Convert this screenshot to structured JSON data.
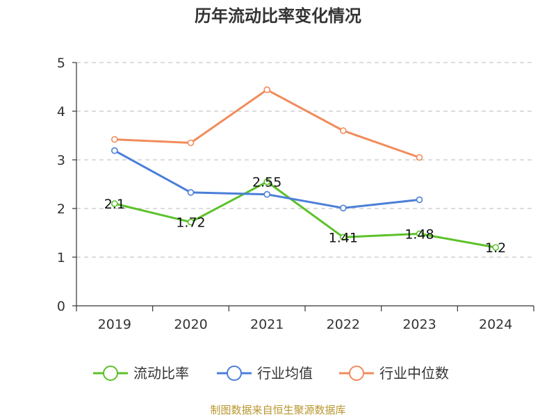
{
  "chart_data": {
    "type": "line",
    "title": "历年流动比率变化情况",
    "categories": [
      "2019",
      "2020",
      "2021",
      "2022",
      "2023",
      "2024"
    ],
    "ylim": [
      0,
      5
    ],
    "yticks": [
      0,
      1,
      2,
      3,
      4,
      5
    ],
    "grid": true,
    "legend_position": "bottom",
    "series": [
      {
        "name": "流动比率",
        "color": "#5cc12a",
        "values": [
          2.1,
          1.72,
          2.55,
          1.41,
          1.48,
          1.2
        ],
        "labels": [
          "2.1",
          "1.72",
          "2.55",
          "1.41",
          "1.48",
          "1.2"
        ]
      },
      {
        "name": "行业均值",
        "color": "#4a7ed8",
        "values": [
          3.19,
          2.33,
          2.29,
          2.01,
          2.18,
          null
        ]
      },
      {
        "name": "行业中位数",
        "color": "#f28b5b",
        "values": [
          3.42,
          3.35,
          4.44,
          3.6,
          3.05,
          null
        ]
      }
    ],
    "source": "制图数据来自恒生聚源数据库"
  }
}
